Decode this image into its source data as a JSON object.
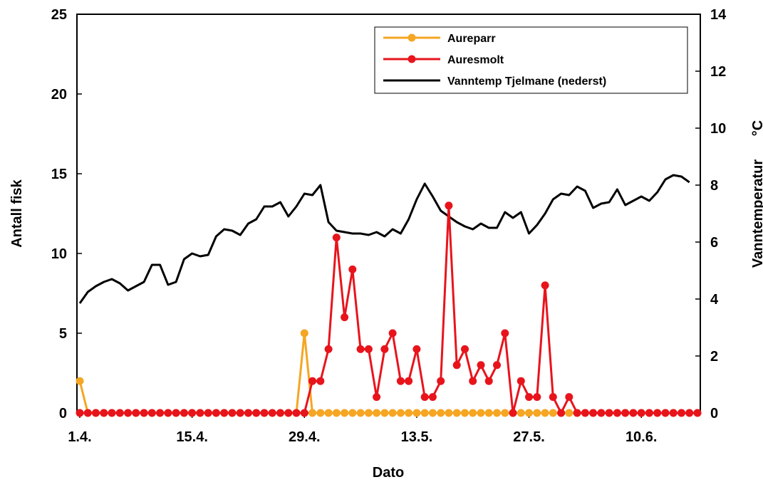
{
  "chart_data": {
    "type": "line",
    "x_start": "1.4.",
    "x_tick_labels": [
      "1.4.",
      "15.4.",
      "29.4.",
      "13.5.",
      "27.5.",
      "10.6."
    ],
    "xlabel": "Dato",
    "ylabel_left": "Antall fisk",
    "ylabel_right": "Vanntemperatur",
    "ylabel_right_unit": "°C",
    "ylim_left": [
      0,
      25
    ],
    "ylim_right": [
      0,
      14
    ],
    "yticks_left": [
      "0",
      "5",
      "10",
      "15",
      "20",
      "25"
    ],
    "yticks_right": [
      "0",
      "2",
      "4",
      "6",
      "8",
      "10",
      "12",
      "14"
    ],
    "x_range": [
      "1.4.",
      "17.6."
    ],
    "grid": false,
    "legend_position": "top-right",
    "series": [
      {
        "name": "Aureparr",
        "axis": "left",
        "color": "#f5a623",
        "marker": "circle",
        "values": [
          2,
          0,
          0,
          0,
          0,
          0,
          0,
          0,
          0,
          0,
          0,
          0,
          0,
          0,
          0,
          0,
          0,
          0,
          0,
          0,
          0,
          0,
          0,
          0,
          0,
          0,
          0,
          0,
          5,
          0,
          0,
          0,
          0,
          0,
          0,
          0,
          0,
          0,
          0,
          0,
          0,
          0,
          0,
          0,
          0,
          0,
          0,
          0,
          0,
          0,
          0,
          0,
          0,
          0,
          0,
          0,
          0,
          0,
          0,
          0,
          0,
          0,
          0,
          0,
          0,
          0,
          0,
          0,
          0,
          0,
          0,
          0,
          0,
          0,
          0,
          0,
          0,
          0
        ]
      },
      {
        "name": "Auresmolt",
        "axis": "left",
        "color": "#e8141c",
        "marker": "circle",
        "values": [
          0,
          0,
          0,
          0,
          0,
          0,
          0,
          0,
          0,
          0,
          0,
          0,
          0,
          0,
          0,
          0,
          0,
          0,
          0,
          0,
          0,
          0,
          0,
          0,
          0,
          0,
          0,
          0,
          0,
          2,
          2,
          4,
          11,
          6,
          9,
          4,
          4,
          1,
          4,
          5,
          2,
          2,
          4,
          1,
          1,
          2,
          13,
          3,
          4,
          2,
          3,
          2,
          3,
          5,
          0,
          2,
          1,
          1,
          8,
          1,
          0,
          1,
          0,
          0,
          0,
          0,
          0,
          0,
          0,
          0,
          0,
          0,
          0,
          0,
          0,
          0,
          0,
          0
        ]
      },
      {
        "name": "Vanntemp Tjelmane (nederst)",
        "axis": "right",
        "color": "#000000",
        "marker": "none",
        "values": [
          3.85,
          4.25,
          4.45,
          4.6,
          4.7,
          4.55,
          4.3,
          4.45,
          4.6,
          5.2,
          5.2,
          4.5,
          4.6,
          5.4,
          5.6,
          5.5,
          5.55,
          6.2,
          6.45,
          6.4,
          6.25,
          6.65,
          6.8,
          7.25,
          7.25,
          7.4,
          6.9,
          7.25,
          7.7,
          7.65,
          8.0,
          6.7,
          6.4,
          6.35,
          6.3,
          6.3,
          6.25,
          6.35,
          6.2,
          6.45,
          6.3,
          6.8,
          7.5,
          8.05,
          7.6,
          7.1,
          6.9,
          6.7,
          6.55,
          6.45,
          6.65,
          6.5,
          6.5,
          7.05,
          6.85,
          7.05,
          6.3,
          6.6,
          7.0,
          7.5,
          7.7,
          7.65,
          7.95,
          7.8,
          7.2,
          7.35,
          7.4,
          7.85,
          7.3,
          7.45,
          7.6,
          7.45,
          7.75,
          8.2,
          8.35,
          8.3,
          8.1
        ]
      }
    ]
  }
}
